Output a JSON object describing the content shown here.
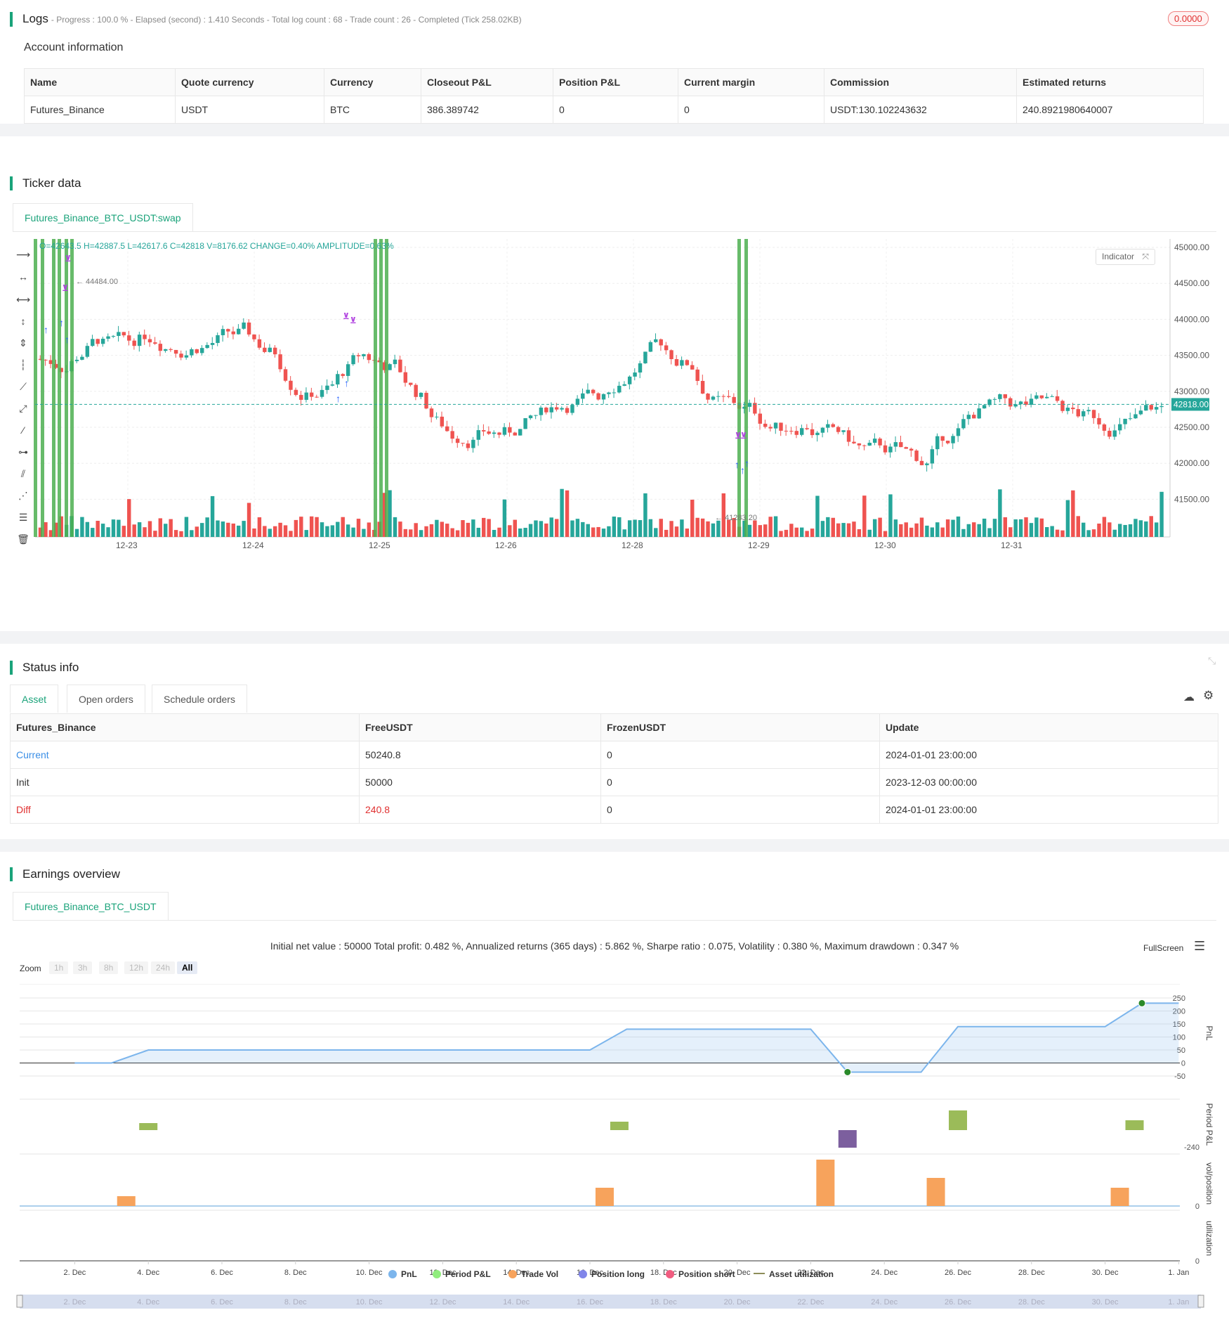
{
  "logs": {
    "title": "Logs",
    "progress": "- Progress : 100.0 % - Elapsed (second) : 1.410  Seconds - Total log count : 68 - Trade count : 26 - Completed (Tick 258.02KB)",
    "badge": "0.0000"
  },
  "account": {
    "title": "Account information",
    "headers": [
      "Name",
      "Quote currency",
      "Currency",
      "Closeout P&L",
      "Position P&L",
      "Current margin",
      "Commission",
      "Estimated returns"
    ],
    "row": [
      "Futures_Binance",
      "USDT",
      "BTC",
      "386.389742",
      "0",
      "0",
      "USDT:130.102243632",
      "240.8921980640007"
    ]
  },
  "ticker": {
    "title": "Ticker data",
    "tab": "Futures_Binance_BTC_USDT:swap",
    "ohlc": "O=42643.5 H=42887.5 L=42617.6 C=42818 V=8176.62 CHANGE=0.40% AMPLITUDE=0.63%",
    "indicator_btn": "Indicator",
    "last_price": "42818.00",
    "high_mark": "44484.00",
    "low_mark": "41283.20",
    "y_ticks": [
      "45000.00",
      "44500.00",
      "44000.00",
      "43500.00",
      "43000.00",
      "42500.00",
      "42000.00",
      "41500.00"
    ],
    "x_ticks": [
      "12-23",
      "12-24",
      "12-25",
      "12-26",
      "12-28",
      "12-29",
      "12-30",
      "12-31"
    ],
    "colors": {
      "up": "#26a69a",
      "down": "#ef5350",
      "signal": "#4caf50",
      "buy": "#2962ff",
      "close": "#b040e0"
    }
  },
  "status": {
    "title": "Status info",
    "tabs": [
      "Asset",
      "Open orders",
      "Schedule orders"
    ],
    "headers": [
      "Futures_Binance",
      "FreeUSDT",
      "FrozenUSDT",
      "Update"
    ],
    "rows": [
      [
        "Current",
        "50240.8",
        "0",
        "2024-01-01 23:00:00"
      ],
      [
        "Init",
        "50000",
        "0",
        "2023-12-03 00:00:00"
      ],
      [
        "Diff",
        "240.8",
        "0",
        "2024-01-01 23:00:00"
      ]
    ]
  },
  "earnings": {
    "title": "Earnings overview",
    "tab": "Futures_Binance_BTC_USDT",
    "summary": "Initial net value : 50000 Total profit: 0.482 %, Annualized returns (365 days) : 5.862 %, Sharpe ratio : 0.075, Volatility : 0.380 %, Maximum drawdown : 0.347 %",
    "fullscreen": "FullScreen",
    "zoom_label": "Zoom",
    "zoom_options": [
      "1h",
      "3h",
      "8h",
      "12h",
      "24h",
      "All"
    ],
    "pnl_ticks": [
      "250",
      "200",
      "150",
      "100",
      "50",
      "0",
      "-50"
    ],
    "axis_titles": [
      "PnL",
      "Period P&L",
      "vol/position",
      "utilization"
    ],
    "period_tick": "-240",
    "vol_tick": "0",
    "util_tick": "0",
    "x_ticks": [
      "2. Dec",
      "4. Dec",
      "6. Dec",
      "8. Dec",
      "10. Dec",
      "12. Dec",
      "14. Dec",
      "16. Dec",
      "18. Dec",
      "20. Dec",
      "22. Dec",
      "24. Dec",
      "26. Dec",
      "28. Dec",
      "30. Dec",
      "1. Jan"
    ],
    "legend": [
      {
        "name": "PnL",
        "color": "#7cb5ec"
      },
      {
        "name": "Period P&L",
        "color": "#90ed7d"
      },
      {
        "name": "Trade Vol",
        "color": "#f7a35c"
      },
      {
        "name": "Position long",
        "color": "#8085e9"
      },
      {
        "name": "Position short",
        "color": "#f15c80"
      },
      {
        "name": "Asset utilization",
        "color": "#8d8d5a"
      }
    ]
  },
  "chart_data": {
    "type": "line",
    "series": [
      {
        "name": "PnL",
        "x": [
          "Dec 2",
          "Dec 3",
          "Dec 4",
          "Dec 16",
          "Dec 17",
          "Dec 22",
          "Dec 23",
          "Dec 25",
          "Dec 26",
          "Dec 30",
          "Dec 31",
          "Jan 1"
        ],
        "values": [
          0,
          0,
          50,
          50,
          130,
          130,
          -35,
          -35,
          140,
          140,
          230,
          230
        ]
      }
    ],
    "ylim": [
      -50,
      250
    ]
  }
}
